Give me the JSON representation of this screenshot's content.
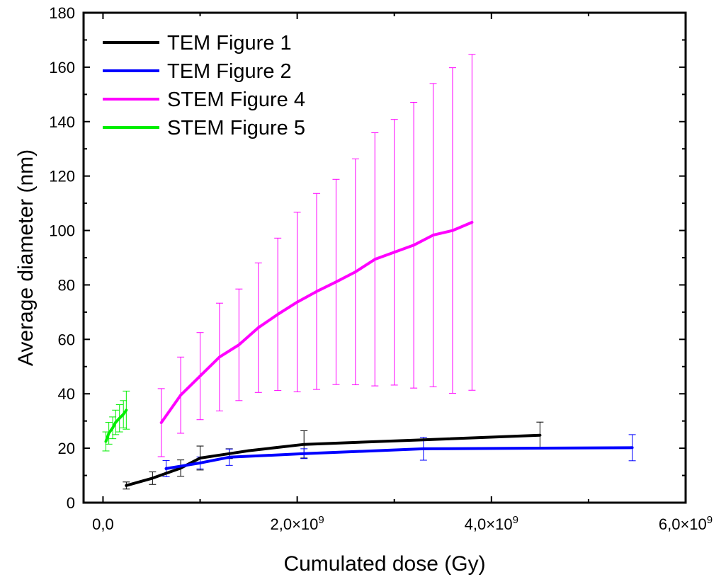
{
  "chart_data": {
    "type": "line",
    "title": "",
    "xlabel": "Cumulated dose (Gy)",
    "ylabel": "Average diameter (nm)",
    "xlim": [
      -200000000.0,
      6000000000.0
    ],
    "ylim": [
      0,
      180
    ],
    "x_ticks": [
      {
        "value": 0,
        "label": "0,0"
      },
      {
        "value": 2000000000.0,
        "label": "2,0×10",
        "exp": "9"
      },
      {
        "value": 4000000000.0,
        "label": "4,0×10",
        "exp": "9"
      },
      {
        "value": 6000000000.0,
        "label": "6,0×10",
        "exp": "9"
      }
    ],
    "y_ticks": [
      0,
      20,
      40,
      60,
      80,
      100,
      120,
      140,
      160,
      180
    ],
    "grid": false,
    "legend_position": "top-left",
    "series": [
      {
        "name": "TEM Figure 1",
        "color": "#000000",
        "x": [
          240000000.0,
          510000000.0,
          800000000.0,
          1000000000.0,
          1300000000.0,
          1500000000.0,
          2070000000.0,
          3300000000.0,
          4500000000.0
        ],
        "y": [
          6.3,
          9.0,
          12.7,
          16.4,
          18.0,
          19.1,
          21.4,
          23.1,
          24.8
        ],
        "yerr": [
          1.3,
          2.3,
          3.0,
          4.4,
          1.8,
          0,
          5.0,
          0,
          4.8
        ]
      },
      {
        "name": "TEM Figure 2",
        "color": "#0000ff",
        "x": [
          650000000.0,
          1000000000.0,
          1300000000.0,
          2070000000.0,
          3300000000.0,
          5450000000.0
        ],
        "y": [
          12.5,
          14.6,
          16.7,
          18.0,
          19.8,
          20.2
        ],
        "yerr": [
          3.0,
          2.2,
          3.0,
          1.8,
          4.2,
          4.8
        ]
      },
      {
        "name": "STEM Figure 4",
        "color": "#ff00ff",
        "x": [
          600000000.0,
          800000000.0,
          1000000000.0,
          1200000000.0,
          1400000000.0,
          1600000000.0,
          1800000000.0,
          2000000000.0,
          2200000000.0,
          2400000000.0,
          2600000000.0,
          2800000000.0,
          3000000000.0,
          3200000000.0,
          3400000000.0,
          3600000000.0,
          3800000000.0
        ],
        "y": [
          29.4,
          39.5,
          46.5,
          53.5,
          58.0,
          64.3,
          69.2,
          73.7,
          77.6,
          81.1,
          84.8,
          89.4,
          92.0,
          94.6,
          98.3,
          100.0,
          103.0
        ],
        "yerr": [
          12.5,
          14.0,
          16.0,
          19.8,
          20.5,
          23.8,
          28.0,
          33.0,
          36.0,
          37.7,
          41.5,
          46.5,
          48.8,
          52.5,
          55.7,
          59.8,
          61.7
        ]
      },
      {
        "name": "STEM Figure 5",
        "color": "#00ee00",
        "x": [
          30000000.0,
          60000000.0,
          100000000.0,
          130000000.0,
          170000000.0,
          210000000.0,
          240000000.0
        ],
        "y": [
          22.5,
          25.5,
          27.5,
          29.5,
          31.0,
          32.5,
          34.0
        ],
        "yerr": [
          3.5,
          4.0,
          4.0,
          4.5,
          5.0,
          5.0,
          7.0
        ]
      }
    ]
  }
}
